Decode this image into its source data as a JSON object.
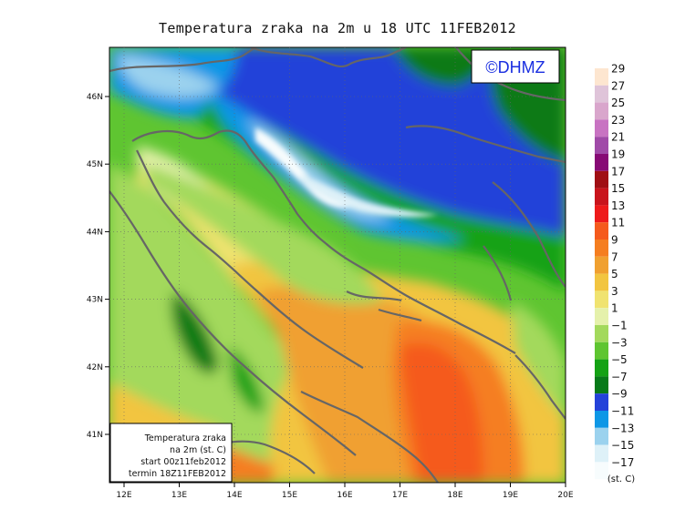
{
  "title": "Temperatura zraka na 2m u 18 UTC 11FEB2012",
  "watermark": "©DHMZ",
  "info_box": {
    "line1": "Temperatura zraka",
    "line2": "na 2m (st. C)",
    "line3": "start 00z11feb2012",
    "line4": "termin 18Z11FEB2012"
  },
  "lon_ticks": [
    "12E",
    "13E",
    "14E",
    "15E",
    "16E",
    "17E",
    "18E",
    "19E",
    "20E"
  ],
  "lat_ticks": [
    "46N",
    "45N",
    "44N",
    "43N",
    "42N",
    "41N"
  ],
  "legend": {
    "unit": "(st. C)",
    "labels": [
      "29",
      "27",
      "25",
      "23",
      "21",
      "19",
      "17",
      "15",
      "13",
      "11",
      "9",
      "7",
      "5",
      "3",
      "1",
      "−1",
      "−3",
      "−5",
      "−7",
      "−9",
      "−11",
      "−13",
      "−15",
      "−17"
    ],
    "colors": [
      "#fde6d0",
      "#dfc4d9",
      "#d9a6cc",
      "#c873c2",
      "#a04aa8",
      "#870a75",
      "#a00f14",
      "#c9141c",
      "#ee1a1a",
      "#f55a1c",
      "#f57e20",
      "#f0a030",
      "#f2c540",
      "#f0e370",
      "#e5f1ab",
      "#a3d95c",
      "#5fc531",
      "#14a214",
      "#077a18",
      "#2442d9",
      "#0d97e6",
      "#9bd2ee",
      "#def1f8",
      "#f7fcfd"
    ]
  },
  "colors": {
    "land_mid": "#f0a030",
    "sea": "#5fc531",
    "coastline": "#666666"
  }
}
